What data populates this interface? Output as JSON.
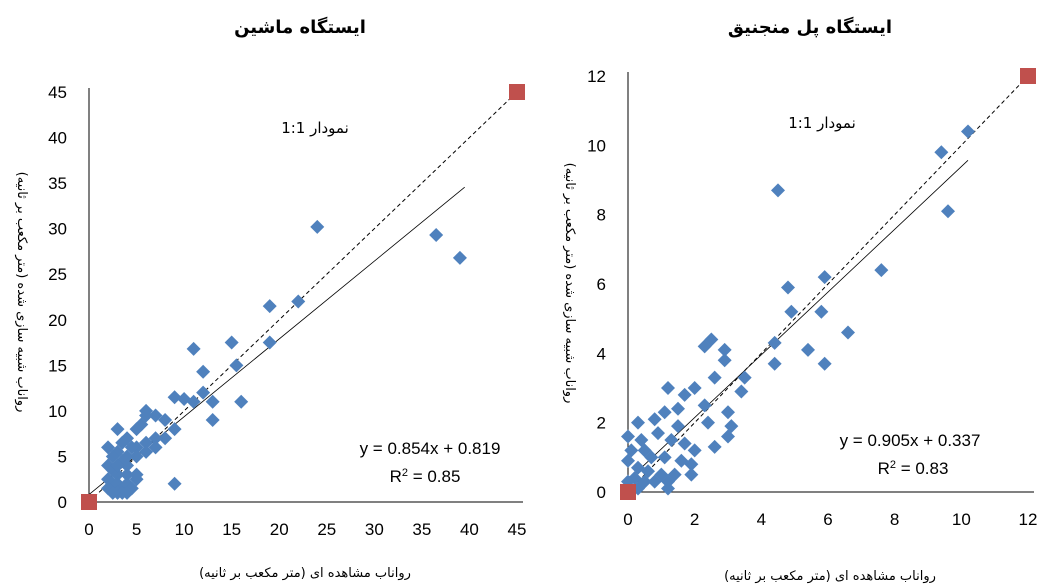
{
  "chart_data": [
    {
      "type": "scatter",
      "title": "ایستگاه ماشین",
      "xlabel": "رواناب مشاهده ای (متر مکعب بر ثانیه)",
      "ylabel": "رواناب شبیه سازی شده (متر مکعب بر ثانیه)",
      "xlim": [
        0,
        45
      ],
      "ylim": [
        0,
        45
      ],
      "xticks": [
        "0",
        "5",
        "10",
        "15",
        "20",
        "25",
        "30",
        "35",
        "40",
        "45"
      ],
      "yticks": [
        "0",
        "5",
        "10",
        "15",
        "20",
        "25",
        "30",
        "35",
        "40",
        "45"
      ],
      "annotation_one_to_one": "نمودار 1:1",
      "equation": "y = 0.854x + 0.819",
      "r2_prefix": "R",
      "r2_sup": "2",
      "r2_suffix": " = 0.85",
      "trendline": {
        "slope": 0.854,
        "intercept": 0.819,
        "x_range": [
          0,
          39.5
        ]
      },
      "one_to_one_line": {
        "from": [
          0,
          0
        ],
        "to": [
          45,
          45
        ]
      },
      "one_to_one_markers": [
        [
          0,
          0
        ],
        [
          45,
          45
        ]
      ],
      "marker_color": "#4f81bd",
      "ref_marker_color": "#c0504d",
      "points": [
        [
          24,
          30.2
        ],
        [
          36.5,
          29.3
        ],
        [
          39,
          26.8
        ],
        [
          22,
          22
        ],
        [
          19,
          21.5
        ],
        [
          19,
          17.5
        ],
        [
          15,
          17.5
        ],
        [
          11,
          16.8
        ],
        [
          15.5,
          15
        ],
        [
          12,
          14.3
        ],
        [
          10,
          11.3
        ],
        [
          12,
          12
        ],
        [
          13,
          11
        ],
        [
          16,
          11
        ],
        [
          13,
          9
        ],
        [
          11,
          11
        ],
        [
          9,
          11.5
        ],
        [
          8,
          9
        ],
        [
          7,
          9.5
        ],
        [
          6,
          10
        ],
        [
          5.5,
          8.5
        ],
        [
          6,
          9.5
        ],
        [
          5,
          8
        ],
        [
          9,
          8
        ],
        [
          8,
          7
        ],
        [
          7,
          7
        ],
        [
          6,
          6.5
        ],
        [
          5,
          6
        ],
        [
          4.5,
          6
        ],
        [
          3,
          8
        ],
        [
          4,
          7
        ],
        [
          3.5,
          6.5
        ],
        [
          2,
          6
        ],
        [
          3,
          5.5
        ],
        [
          2.5,
          5
        ],
        [
          3.5,
          4.5
        ],
        [
          4,
          4
        ],
        [
          5,
          5
        ],
        [
          6,
          5.5
        ],
        [
          7,
          6
        ],
        [
          2,
          4
        ],
        [
          2.5,
          3.5
        ],
        [
          3,
          3
        ],
        [
          4,
          3
        ],
        [
          5,
          3
        ],
        [
          2,
          2.5
        ],
        [
          2.5,
          2
        ],
        [
          3,
          2
        ],
        [
          3.5,
          1.5
        ],
        [
          4,
          2
        ],
        [
          4.5,
          1.5
        ],
        [
          3,
          1
        ],
        [
          3.5,
          1
        ],
        [
          4,
          1
        ],
        [
          2,
          1.5
        ],
        [
          2.5,
          1
        ],
        [
          5,
          2.5
        ],
        [
          4,
          5
        ],
        [
          3,
          4
        ],
        [
          9,
          2
        ]
      ]
    },
    {
      "type": "scatter",
      "title": "ایستگاه پل منجنیق",
      "xlabel": "رواناب مشاهده ای (متر مکعب بر ثانیه)",
      "ylabel": "رواناب شبیه سازی شده (متر مکعب بر ثانیه)",
      "xlim": [
        0,
        12
      ],
      "ylim": [
        0,
        12
      ],
      "xticks": [
        "0",
        "2",
        "4",
        "6",
        "8",
        "10",
        "12"
      ],
      "yticks": [
        "0",
        "2",
        "4",
        "6",
        "8",
        "10",
        "12"
      ],
      "annotation_one_to_one": "نمودار 1:1",
      "equation": "y = 0.905x + 0.337",
      "r2_prefix": "R",
      "r2_sup": "2",
      "r2_suffix": " = 0.83",
      "trendline": {
        "slope": 0.905,
        "intercept": 0.337,
        "x_range": [
          0,
          10.2
        ]
      },
      "one_to_one_line": {
        "from": [
          0,
          0
        ],
        "to": [
          12,
          12
        ]
      },
      "one_to_one_markers": [
        [
          0,
          0
        ],
        [
          12,
          12
        ]
      ],
      "marker_color": "#4f81bd",
      "ref_marker_color": "#c0504d",
      "points": [
        [
          10.2,
          10.4
        ],
        [
          9.4,
          9.8
        ],
        [
          9.6,
          8.1
        ],
        [
          4.5,
          8.7
        ],
        [
          7.6,
          6.4
        ],
        [
          5.9,
          6.2
        ],
        [
          4.8,
          5.9
        ],
        [
          4.9,
          5.2
        ],
        [
          5.8,
          5.2
        ],
        [
          6.6,
          4.6
        ],
        [
          5.4,
          4.1
        ],
        [
          5.9,
          3.7
        ],
        [
          4.4,
          4.3
        ],
        [
          4.4,
          3.7
        ],
        [
          2.5,
          4.4
        ],
        [
          2.3,
          4.2
        ],
        [
          2.9,
          4.1
        ],
        [
          2.9,
          3.8
        ],
        [
          2.6,
          3.3
        ],
        [
          3.5,
          3.3
        ],
        [
          3.4,
          2.9
        ],
        [
          2.0,
          3.0
        ],
        [
          1.2,
          3.0
        ],
        [
          1.7,
          2.8
        ],
        [
          2.3,
          2.5
        ],
        [
          1.5,
          2.4
        ],
        [
          1.1,
          2.3
        ],
        [
          0.8,
          2.1
        ],
        [
          0.3,
          2.0
        ],
        [
          3.0,
          2.3
        ],
        [
          3.1,
          1.9
        ],
        [
          3.0,
          1.6
        ],
        [
          2.6,
          1.3
        ],
        [
          0.0,
          1.6
        ],
        [
          0.4,
          1.5
        ],
        [
          0.9,
          1.7
        ],
        [
          1.3,
          1.5
        ],
        [
          1.7,
          1.4
        ],
        [
          0.5,
          1.2
        ],
        [
          0.1,
          1.2
        ],
        [
          0.7,
          1.0
        ],
        [
          1.1,
          1.0
        ],
        [
          1.6,
          0.9
        ],
        [
          1.9,
          0.8
        ],
        [
          0.0,
          0.9
        ],
        [
          0.3,
          0.7
        ],
        [
          0.6,
          0.6
        ],
        [
          1.0,
          0.5
        ],
        [
          1.4,
          0.5
        ],
        [
          1.9,
          0.5
        ],
        [
          0.2,
          0.4
        ],
        [
          0.5,
          0.3
        ],
        [
          0.8,
          0.3
        ],
        [
          1.2,
          0.3
        ],
        [
          0.0,
          0.3
        ],
        [
          0.3,
          0.1
        ],
        [
          2.0,
          1.2
        ],
        [
          1.5,
          1.9
        ],
        [
          2.4,
          2.0
        ],
        [
          1.2,
          0.1
        ]
      ]
    }
  ]
}
